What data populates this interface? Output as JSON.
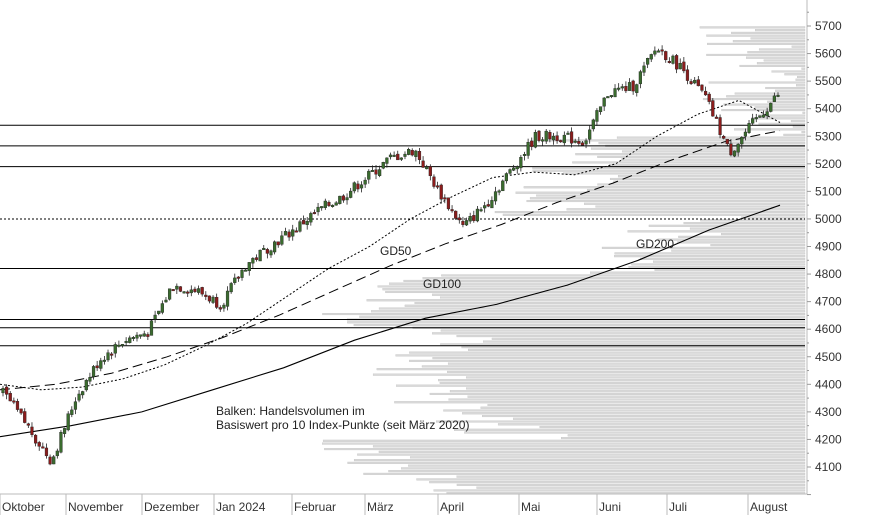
{
  "chart_data": {
    "type": "candlestick",
    "y_ticks": [
      4100,
      4200,
      4300,
      4400,
      4500,
      4600,
      4700,
      4800,
      4900,
      5000,
      5100,
      5200,
      5300,
      5400,
      5500,
      5600,
      5700
    ],
    "y_tick_labels": [
      "4100",
      "4200",
      "4300",
      "4400",
      "4500",
      "4600",
      "4700",
      "4800",
      "4900",
      "5000",
      "5100",
      "5200",
      "5300",
      "5400",
      "5500",
      "5600",
      "5700"
    ],
    "ylim": [
      4000,
      5800
    ],
    "month_labels": [
      "Oktober",
      "November",
      "Dezember",
      "Jan 2024",
      "Februar",
      "März",
      "April",
      "Mai",
      "Juni",
      "Juli",
      "August"
    ],
    "annotations": {
      "gd50": "GD50",
      "gd100": "GD100",
      "gd200": "GD200",
      "volume_line1": "Balken: Handelsvolumen im",
      "volume_line2": "Basiswert pro 10 Index-Punkte (seit März 2020)"
    },
    "support_resistance_levels": [
      5340,
      5265,
      5190,
      4820,
      4635,
      4605,
      4540
    ],
    "dotted_level": 5000,
    "price_path": [
      {
        "month": "Oktober",
        "close": 4370
      },
      {
        "month": "Oktober",
        "close": 4250
      },
      {
        "month": "Oktober",
        "close": 4120
      },
      {
        "month": "November",
        "close": 4350
      },
      {
        "month": "November",
        "close": 4490
      },
      {
        "month": "November",
        "close": 4560
      },
      {
        "month": "Dezember",
        "close": 4590
      },
      {
        "month": "Dezember",
        "close": 4760
      },
      {
        "month": "Dezember",
        "close": 4740
      },
      {
        "month": "Jan 2024",
        "close": 4690
      },
      {
        "month": "Jan 2024",
        "close": 4830
      },
      {
        "month": "Jan 2024",
        "close": 4900
      },
      {
        "month": "Februar",
        "close": 4960
      },
      {
        "month": "Februar",
        "close": 5030
      },
      {
        "month": "Februar",
        "close": 5080
      },
      {
        "month": "März",
        "close": 5150
      },
      {
        "month": "März",
        "close": 5220
      },
      {
        "month": "März",
        "close": 5250
      },
      {
        "month": "April",
        "close": 5100
      },
      {
        "month": "April",
        "close": 4970
      },
      {
        "month": "April",
        "close": 5060
      },
      {
        "month": "Mai",
        "close": 5180
      },
      {
        "month": "Mai",
        "close": 5300
      },
      {
        "month": "Mai",
        "close": 5300
      },
      {
        "month": "Juni",
        "close": 5280
      },
      {
        "month": "Juni",
        "close": 5460
      },
      {
        "month": "Juni",
        "close": 5480
      },
      {
        "month": "Juli",
        "close": 5620
      },
      {
        "month": "Juli",
        "close": 5550
      },
      {
        "month": "Juli",
        "close": 5440
      },
      {
        "month": "August",
        "close": 5240
      },
      {
        "month": "August",
        "close": 5350
      },
      {
        "month": "August",
        "close": 5450
      }
    ],
    "gd50": [
      4400,
      4380,
      4390,
      4420,
      4470,
      4540,
      4620,
      4720,
      4820,
      4900,
      5000,
      5080,
      5150,
      5170,
      5160,
      5200,
      5300,
      5380,
      5430,
      5350
    ],
    "gd100": [
      4380,
      4400,
      4440,
      4500,
      4570,
      4650,
      4740,
      4830,
      4910,
      4980,
      5060,
      5130,
      5210,
      5280,
      5320
    ],
    "gd200": [
      4210,
      4250,
      4300,
      4380,
      4460,
      4560,
      4640,
      4690,
      4760,
      4850,
      4960,
      5050
    ],
    "volume_profile_max_width_fraction": 0.75,
    "colors": {
      "up": "#3a6b2e",
      "down": "#8b1c1c",
      "volume_bar": "#d9d9d9",
      "line": "#000000"
    },
    "grid": false
  }
}
